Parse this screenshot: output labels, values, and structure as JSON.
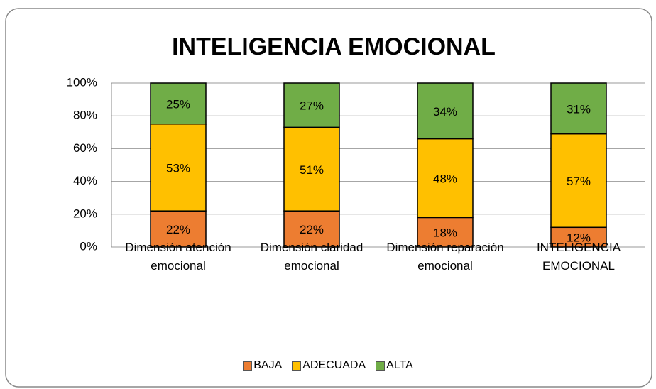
{
  "chart_data": {
    "type": "stacked_bar",
    "title": "INTELIGENCIA EMOCIONAL",
    "categories": [
      "Dimensión atención emocional",
      "Dimensión claridad emocional",
      "Dimensión reparación emocional",
      "INTELIGENCIA EMOCIONAL"
    ],
    "series": [
      {
        "name": "BAJA",
        "color": "#ED7D31",
        "values": [
          22,
          22,
          18,
          12
        ],
        "value_labels": [
          "22%",
          "22%",
          "18%",
          "12%"
        ]
      },
      {
        "name": "ADECUADA",
        "color": "#FFC000",
        "values": [
          53,
          51,
          48,
          57
        ],
        "value_labels": [
          "53%",
          "51%",
          "48%",
          "57%"
        ]
      },
      {
        "name": "ALTA",
        "color": "#70AD47",
        "values": [
          25,
          27,
          34,
          31
        ],
        "value_labels": [
          "25%",
          "27%",
          "34%",
          "31%"
        ]
      }
    ],
    "ylim": [
      0,
      100
    ],
    "yticks": [
      {
        "value": 0,
        "label": "0%"
      },
      {
        "value": 20,
        "label": "20%"
      },
      {
        "value": 40,
        "label": "40%"
      },
      {
        "value": 60,
        "label": "60%"
      },
      {
        "value": 80,
        "label": "80%"
      },
      {
        "value": 100,
        "label": "100%"
      }
    ],
    "grid": true,
    "legend": "bottom"
  }
}
